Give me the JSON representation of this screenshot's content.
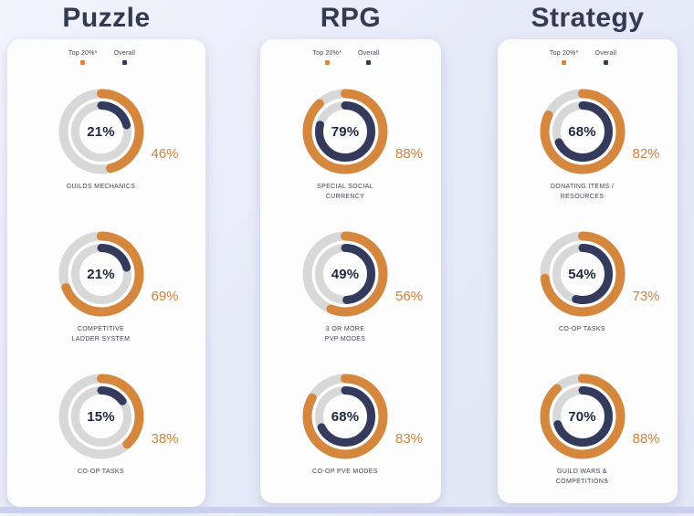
{
  "colors": {
    "top20_orange": "#D5873E",
    "overall_navy": "#333A5B",
    "ring_track": "#D8D8D8",
    "side_value_text": "#D0823C",
    "center_value_text": "#23283A",
    "category_title_text": "#333B52",
    "label_text": "#40454F",
    "card_background": "#FDFDFE",
    "page_background": "#E6E9F7",
    "bottom_strip": "#C9CFEE"
  },
  "chart_data": {
    "type": "donut",
    "legend": [
      "Top 20%*",
      "Overall"
    ],
    "legend_colors": {
      "Top 20%*": "#D5873E",
      "Overall": "#333A5B"
    },
    "rings": {
      "outer": {
        "series": "Top 20%*",
        "color": "#D5873E"
      },
      "inner": {
        "series": "Overall",
        "color": "#333A5B"
      },
      "start_angle_deg": 0,
      "direction": "clockwise",
      "range": [
        0,
        100
      ]
    },
    "groups": [
      {
        "category": "Puzzle",
        "items": [
          {
            "label": "GUILDS MECHANICS",
            "overall": 21,
            "top20": 46,
            "overall_text": "21%",
            "top20_text": "46%"
          },
          {
            "label": "COMPETITIVE\nLADDER SYSTEM",
            "overall": 21,
            "top20": 69,
            "overall_text": "21%",
            "top20_text": "69%"
          },
          {
            "label": "CO-OP TASKS",
            "overall": 15,
            "top20": 38,
            "overall_text": "15%",
            "top20_text": "38%"
          }
        ]
      },
      {
        "category": "RPG",
        "items": [
          {
            "label": "SPECIAL SOCIAL\nCURRENCY",
            "overall": 79,
            "top20": 88,
            "overall_text": "79%",
            "top20_text": "88%"
          },
          {
            "label": "3 OR MORE\nPVP MODES",
            "overall": 49,
            "top20": 56,
            "overall_text": "49%",
            "top20_text": "56%"
          },
          {
            "label": "CO-OP PVE MODES",
            "overall": 68,
            "top20": 83,
            "overall_text": "68%",
            "top20_text": "83%"
          }
        ]
      },
      {
        "category": "Strategy",
        "items": [
          {
            "label": "DONATING ITEMS /\nRESOURCES",
            "overall": 68,
            "top20": 82,
            "overall_text": "68%",
            "top20_text": "82%"
          },
          {
            "label": "CO-OP TASKS",
            "overall": 54,
            "top20": 73,
            "overall_text": "54%",
            "top20_text": "73%"
          },
          {
            "label": "GUILD WARS &\nCOMPETITIONS",
            "overall": 70,
            "top20": 88,
            "overall_text": "70%",
            "top20_text": "88%"
          }
        ]
      }
    ]
  }
}
